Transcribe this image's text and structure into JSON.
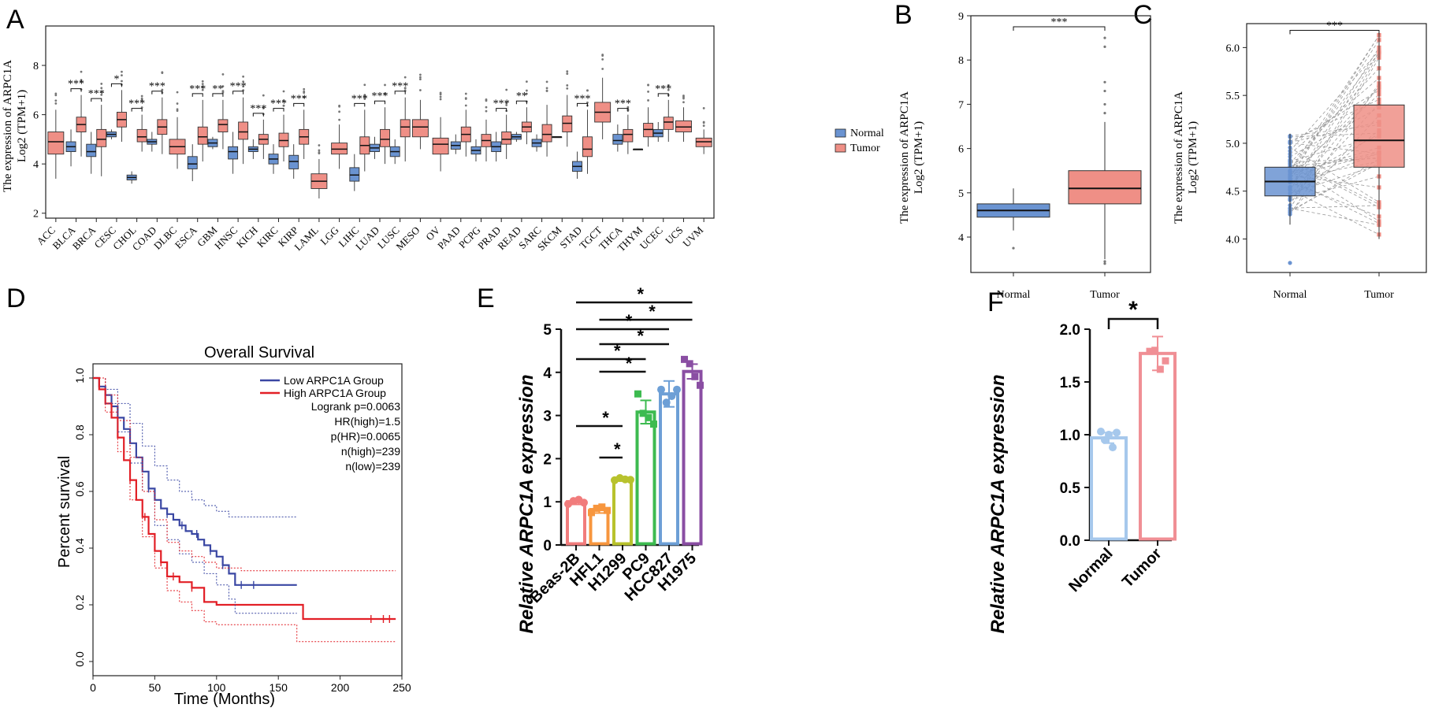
{
  "panels": [
    {
      "letter": "A"
    },
    {
      "letter": "B"
    },
    {
      "letter": "C"
    },
    {
      "letter": "D"
    },
    {
      "letter": "E"
    },
    {
      "letter": "F"
    }
  ],
  "colors": {
    "normal": "#6a93d1",
    "tumor": "#ef8f86",
    "low": "#3a47a3",
    "high": "#e21f26"
  },
  "chart_data": [
    {
      "id": "A",
      "type": "box",
      "ylabel_line1": "The  expression  of ARPC1A",
      "ylabel_line2": "Log2 (TPM+1)",
      "ylim": [
        1.8,
        9.6
      ],
      "yticks": [
        2,
        4,
        6,
        8
      ],
      "legend": [
        "Normal",
        "Tumor"
      ],
      "categories": [
        {
          "name": "ACC",
          "tumor": [
            3.4,
            4.4,
            4.9,
            5.3,
            6.2
          ],
          "sig": ""
        },
        {
          "name": "BLCA",
          "normal": [
            3.9,
            4.5,
            4.7,
            4.9,
            5.4
          ],
          "tumor": [
            4.3,
            5.3,
            5.6,
            5.9,
            6.8
          ],
          "sig": "***"
        },
        {
          "name": "BRCA",
          "normal": [
            3.6,
            4.3,
            4.5,
            4.8,
            5.3
          ],
          "tumor": [
            3.5,
            4.7,
            5.0,
            5.4,
            6.4
          ],
          "sig": "***"
        },
        {
          "name": "CESC",
          "normal": [
            5.0,
            5.1,
            5.2,
            5.3,
            5.4
          ],
          "tumor": [
            4.9,
            5.5,
            5.8,
            6.1,
            7.0
          ],
          "sig": "*"
        },
        {
          "name": "CHOL",
          "normal": [
            3.2,
            3.35,
            3.45,
            3.55,
            3.7
          ],
          "tumor": [
            4.5,
            4.9,
            5.1,
            5.4,
            6.0
          ],
          "sig": "***"
        },
        {
          "name": "COAD",
          "normal": [
            4.5,
            4.8,
            4.9,
            5.0,
            5.3
          ],
          "tumor": [
            4.4,
            5.2,
            5.5,
            5.8,
            6.7
          ],
          "sig": "***"
        },
        {
          "name": "DLBC",
          "tumor": [
            3.8,
            4.4,
            4.7,
            5.0,
            5.9
          ],
          "sig": ""
        },
        {
          "name": "ESCA",
          "normal": [
            3.3,
            3.8,
            4.0,
            4.3,
            4.8
          ],
          "tumor": [
            4.1,
            4.8,
            5.1,
            5.5,
            6.6
          ],
          "sig": "***"
        },
        {
          "name": "GBM",
          "normal": [
            4.6,
            4.7,
            4.85,
            5.0,
            5.1
          ],
          "tumor": [
            4.6,
            5.3,
            5.6,
            5.8,
            6.6
          ],
          "sig": "**"
        },
        {
          "name": "HNSC",
          "normal": [
            3.6,
            4.2,
            4.5,
            4.7,
            5.3
          ],
          "tumor": [
            4.0,
            5.0,
            5.3,
            5.7,
            6.7
          ],
          "sig": "***"
        },
        {
          "name": "KICH",
          "normal": [
            4.2,
            4.5,
            4.6,
            4.7,
            5.0
          ],
          "tumor": [
            4.2,
            4.8,
            5.0,
            5.2,
            5.8
          ],
          "sig": "***"
        },
        {
          "name": "KIRC",
          "normal": [
            3.6,
            4.0,
            4.2,
            4.4,
            4.8
          ],
          "tumor": [
            4.1,
            4.7,
            4.95,
            5.25,
            6.0
          ],
          "sig": "***"
        },
        {
          "name": "KIRP",
          "normal": [
            3.4,
            3.8,
            4.1,
            4.35,
            4.8
          ],
          "tumor": [
            4.2,
            4.8,
            5.1,
            5.4,
            6.2
          ],
          "sig": "***"
        },
        {
          "name": "LAML",
          "tumor": [
            2.6,
            3.0,
            3.3,
            3.6,
            4.2
          ],
          "sig": ""
        },
        {
          "name": "LGG",
          "tumor": [
            3.8,
            4.4,
            4.6,
            4.85,
            5.6
          ],
          "sig": ""
        },
        {
          "name": "LIHC",
          "normal": [
            2.9,
            3.3,
            3.55,
            3.85,
            4.4
          ],
          "tumor": [
            3.7,
            4.4,
            4.75,
            5.1,
            6.2
          ],
          "sig": "***"
        },
        {
          "name": "LUAD",
          "normal": [
            4.2,
            4.5,
            4.65,
            4.8,
            5.1
          ],
          "tumor": [
            4.0,
            4.7,
            5.0,
            5.4,
            6.3
          ],
          "sig": "***"
        },
        {
          "name": "LUSC",
          "normal": [
            4.0,
            4.3,
            4.5,
            4.7,
            5.0
          ],
          "tumor": [
            4.1,
            5.1,
            5.5,
            5.8,
            6.7
          ],
          "sig": "***"
        },
        {
          "name": "MESO",
          "tumor": [
            4.6,
            5.1,
            5.5,
            5.8,
            6.6
          ],
          "sig": ""
        },
        {
          "name": "OV",
          "tumor": [
            3.7,
            4.4,
            4.8,
            5.05,
            5.9
          ],
          "sig": ""
        },
        {
          "name": "PAAD",
          "normal": [
            4.4,
            4.6,
            4.75,
            4.9,
            5.2
          ],
          "tumor": [
            4.3,
            4.9,
            5.2,
            5.5,
            6.2
          ],
          "sig": ""
        },
        {
          "name": "PCPG",
          "normal": [
            4.1,
            4.4,
            4.55,
            4.7,
            5.0
          ],
          "tumor": [
            4.1,
            4.7,
            4.95,
            5.2,
            5.8
          ],
          "sig": ""
        },
        {
          "name": "PRAD",
          "normal": [
            4.1,
            4.5,
            4.7,
            4.9,
            5.3
          ],
          "tumor": [
            4.2,
            4.8,
            5.0,
            5.3,
            6.0
          ],
          "sig": "***"
        },
        {
          "name": "READ",
          "normal": [
            4.9,
            5.0,
            5.1,
            5.2,
            5.3
          ],
          "tumor": [
            4.8,
            5.3,
            5.5,
            5.7,
            6.3
          ],
          "sig": "**"
        },
        {
          "name": "SARC",
          "normal": [
            4.5,
            4.7,
            4.85,
            5.0,
            5.2
          ],
          "tumor": [
            4.3,
            4.9,
            5.2,
            5.6,
            6.4
          ],
          "sig": ""
        },
        {
          "name": "SKCM",
          "normal": [
            5.1,
            5.1,
            5.1,
            5.1,
            5.1
          ],
          "tumor": [
            4.7,
            5.3,
            5.65,
            5.95,
            6.8
          ],
          "sig": ""
        },
        {
          "name": "STAD",
          "normal": [
            3.4,
            3.7,
            3.9,
            4.1,
            4.5
          ],
          "tumor": [
            3.6,
            4.3,
            4.6,
            5.1,
            6.2
          ],
          "sig": "***"
        },
        {
          "name": "TGCT",
          "tumor": [
            5.0,
            5.7,
            6.1,
            6.5,
            7.5
          ],
          "sig": ""
        },
        {
          "name": "THCA",
          "normal": [
            4.5,
            4.8,
            4.95,
            5.2,
            5.6
          ],
          "tumor": [
            4.4,
            4.9,
            5.2,
            5.4,
            6.0
          ],
          "sig": "***"
        },
        {
          "name": "THYM",
          "normal": [
            4.6,
            4.6,
            4.6,
            4.6,
            4.6
          ],
          "tumor": [
            4.7,
            5.1,
            5.4,
            5.65,
            6.3
          ],
          "sig": ""
        },
        {
          "name": "UCEC",
          "normal": [
            4.9,
            5.1,
            5.25,
            5.4,
            5.7
          ],
          "tumor": [
            4.9,
            5.4,
            5.7,
            5.9,
            6.6
          ],
          "sig": "***"
        },
        {
          "name": "UCS",
          "tumor": [
            4.9,
            5.3,
            5.5,
            5.75,
            6.3
          ],
          "sig": ""
        },
        {
          "name": "UVM",
          "tumor": [
            4.4,
            4.7,
            4.9,
            5.05,
            5.4
          ],
          "sig": ""
        }
      ]
    },
    {
      "id": "B",
      "type": "box",
      "ylabel_line1": "The  expression  of ARPC1A",
      "ylabel_line2": "Log2 (TPM+1)",
      "ylim": [
        3.2,
        9.0
      ],
      "yticks": [
        4,
        5,
        6,
        7,
        8,
        9
      ],
      "categories": [
        "Normal",
        "Tumor"
      ],
      "normal": [
        4.15,
        4.45,
        4.6,
        4.75,
        5.1
      ],
      "tumor": [
        3.5,
        4.75,
        5.1,
        5.5,
        6.6
      ],
      "sig": "***"
    },
    {
      "id": "C",
      "type": "paired-box",
      "ylabel_line1": "The  expression  of ARPC1A",
      "ylabel_line2": "Log2 (TPM+1)",
      "ylim": [
        3.65,
        6.25
      ],
      "yticks": [
        4.0,
        4.5,
        5.0,
        5.5,
        6.0
      ],
      "categories": [
        "Normal",
        "Tumor"
      ],
      "normal": [
        4.15,
        4.45,
        4.6,
        4.75,
        5.1
      ],
      "tumor": [
        4.0,
        4.75,
        5.03,
        5.4,
        6.15
      ],
      "sig": "***"
    },
    {
      "id": "D",
      "type": "line",
      "title": "Overall Survival",
      "xlabel": "Time (Months)",
      "ylabel": "Percent survival",
      "xlim": [
        0,
        250
      ],
      "ylim": [
        0,
        1.0
      ],
      "xticks": [
        0,
        50,
        100,
        150,
        200,
        250
      ],
      "yticks": [
        0.0,
        0.2,
        0.4,
        0.6,
        0.8,
        1.0
      ],
      "legend": [
        "Low ARPC1A Group",
        "High ARPC1A Group"
      ],
      "stats": [
        "Logrank p=0.0063",
        "HR(high)=1.5",
        "p(HR)=0.0065",
        "n(high)=239",
        "n(low)=239"
      ],
      "series": [
        {
          "name": "Low ARPC1A Group",
          "x": [
            0,
            5,
            10,
            15,
            20,
            25,
            30,
            35,
            40,
            45,
            50,
            55,
            60,
            65,
            70,
            75,
            80,
            85,
            90,
            95,
            100,
            105,
            110,
            115,
            130,
            165
          ],
          "y": [
            1.0,
            0.97,
            0.94,
            0.9,
            0.86,
            0.82,
            0.77,
            0.72,
            0.67,
            0.61,
            0.57,
            0.54,
            0.52,
            0.5,
            0.48,
            0.46,
            0.45,
            0.43,
            0.41,
            0.39,
            0.37,
            0.34,
            0.31,
            0.27,
            0.27,
            0.27
          ]
        },
        {
          "name": "High ARPC1A Group",
          "x": [
            0,
            5,
            10,
            15,
            20,
            25,
            30,
            35,
            40,
            45,
            50,
            55,
            60,
            70,
            80,
            90,
            100,
            120,
            140,
            165,
            170,
            245
          ],
          "y": [
            1.0,
            0.96,
            0.91,
            0.86,
            0.79,
            0.71,
            0.64,
            0.57,
            0.51,
            0.45,
            0.39,
            0.35,
            0.3,
            0.28,
            0.26,
            0.21,
            0.2,
            0.2,
            0.2,
            0.2,
            0.15,
            0.15
          ]
        },
        {
          "name": "Low CI upper",
          "x": [
            0,
            10,
            20,
            30,
            40,
            50,
            60,
            70,
            80,
            90,
            100,
            110,
            120,
            165
          ],
          "y": [
            1.0,
            0.96,
            0.91,
            0.84,
            0.76,
            0.69,
            0.64,
            0.6,
            0.57,
            0.55,
            0.53,
            0.51,
            0.51,
            0.51
          ]
        },
        {
          "name": "Low CI lower",
          "x": [
            0,
            10,
            20,
            30,
            40,
            50,
            60,
            70,
            80,
            90,
            100,
            110,
            115,
            165
          ],
          "y": [
            1.0,
            0.91,
            0.81,
            0.7,
            0.6,
            0.48,
            0.43,
            0.38,
            0.35,
            0.31,
            0.27,
            0.22,
            0.17,
            0.17
          ]
        },
        {
          "name": "High CI upper",
          "x": [
            0,
            10,
            20,
            30,
            40,
            50,
            60,
            70,
            80,
            90,
            100,
            120,
            165,
            245
          ],
          "y": [
            1.0,
            0.94,
            0.85,
            0.72,
            0.6,
            0.5,
            0.42,
            0.39,
            0.37,
            0.35,
            0.33,
            0.32,
            0.32,
            0.32
          ]
        },
        {
          "name": "High CI lower",
          "x": [
            0,
            10,
            20,
            30,
            40,
            50,
            60,
            70,
            80,
            90,
            100,
            165,
            245
          ],
          "y": [
            1.0,
            0.88,
            0.74,
            0.57,
            0.44,
            0.33,
            0.25,
            0.21,
            0.18,
            0.14,
            0.13,
            0.07,
            0.07
          ]
        }
      ]
    },
    {
      "id": "E",
      "type": "bar",
      "ylabel": "Relative ARPC1A expression",
      "ylim": [
        0,
        5
      ],
      "yticks": [
        0,
        1,
        2,
        3,
        4,
        5
      ],
      "categories": [
        "Beas-2B",
        "HFL1",
        "H1299",
        "PC9",
        "HCC827",
        "H1975"
      ],
      "values": [
        1.0,
        0.82,
        1.52,
        3.08,
        3.5,
        4.02
      ],
      "errors": [
        0.06,
        0.08,
        0.04,
        0.27,
        0.3,
        0.17
      ],
      "points": [
        [
          0.95,
          1.02,
          1.05,
          0.98
        ],
        [
          0.75,
          0.85,
          0.88,
          0.8
        ],
        [
          1.5,
          1.55,
          1.52,
          1.51
        ],
        [
          3.5,
          3.05,
          2.95,
          2.8
        ],
        [
          3.6,
          3.3,
          3.45,
          3.6
        ],
        [
          4.3,
          4.2,
          3.9,
          3.7
        ]
      ],
      "colors": [
        "#f17c7c",
        "#f7963e",
        "#b8c22d",
        "#3dbb50",
        "#6d9fd6",
        "#8a4ea3"
      ],
      "comparisons": [
        {
          "from": 0,
          "to": 5,
          "label": "*"
        },
        {
          "from": 1,
          "to": 5,
          "label": "*"
        },
        {
          "from": 0,
          "to": 4,
          "label": "*"
        },
        {
          "from": 1,
          "to": 4,
          "label": "*"
        },
        {
          "from": 0,
          "to": 3,
          "label": "*"
        },
        {
          "from": 1,
          "to": 3,
          "label": "*"
        },
        {
          "from": 0,
          "to": 2,
          "label": "*"
        },
        {
          "from": 1,
          "to": 2,
          "label": "*"
        }
      ]
    },
    {
      "id": "F",
      "type": "bar",
      "ylabel": "Relative ARPC1A expression",
      "ylim": [
        0,
        2.0
      ],
      "yticks": [
        "0.0",
        "0.5",
        "1.0",
        "1.5",
        "2.0"
      ],
      "categories": [
        "Normal",
        "Tumor"
      ],
      "values": [
        0.97,
        1.77
      ],
      "errors": [
        0.05,
        0.16
      ],
      "points": [
        [
          1.03,
          0.95,
          1.0,
          0.88,
          1.02
        ],
        [
          1.79,
          1.8,
          1.62,
          1.7
        ]
      ],
      "colors": [
        "#a6c8ec",
        "#f08f95"
      ],
      "sig": "*"
    }
  ]
}
